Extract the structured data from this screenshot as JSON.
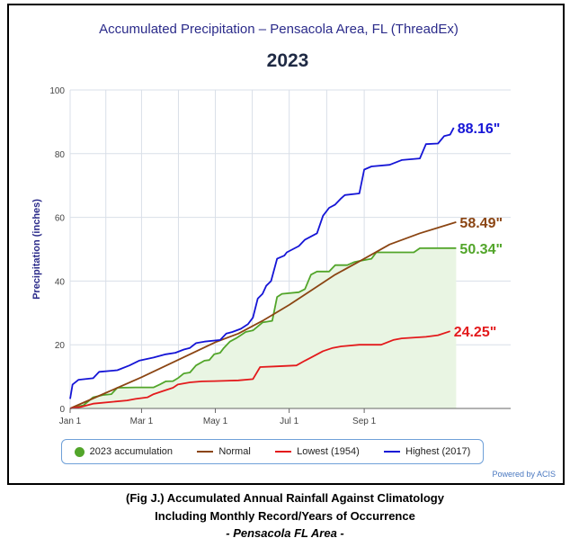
{
  "caption": {
    "line1": "(Fig J.) Accumulated Annual Rainfall Against  Climatology",
    "line2": "Including Monthly Record/Years of Occurrence",
    "line3": "- Pensacola FL Area -"
  },
  "credit": "Powered by ACIS",
  "colors": {
    "y2023": "#52a52a",
    "normal": "#8b4513",
    "lowest": "#e31a1c",
    "highest": "#1515d6",
    "fill": "#e9f5e3",
    "grid": "#d9dfe8"
  },
  "chart_data": {
    "type": "line",
    "title": "Accumulated Precipitation – Pensacola Area, FL (ThreadEx)",
    "subtitle": "2023",
    "ylabel": "Precipitation (inches)",
    "xlabel": "",
    "xlim": [
      1,
      365
    ],
    "ylim": [
      0,
      100
    ],
    "yticks": [
      0,
      20,
      40,
      60,
      80,
      100
    ],
    "xticks": [
      {
        "day": 1,
        "label": "Jan 1"
      },
      {
        "day": 60,
        "label": "Mar 1"
      },
      {
        "day": 121,
        "label": "May 1"
      },
      {
        "day": 182,
        "label": "Jul 1"
      },
      {
        "day": 244,
        "label": "Sep 1"
      }
    ],
    "grid": true,
    "legend_position": "bottom",
    "series": [
      {
        "key": "y2023",
        "name": "2023 accumulation",
        "end_label": "50.34\"",
        "points": [
          [
            1,
            0
          ],
          [
            5,
            0.4
          ],
          [
            12,
            1
          ],
          [
            20,
            3.5
          ],
          [
            28,
            4.2
          ],
          [
            35,
            4.5
          ],
          [
            40,
            6.5
          ],
          [
            55,
            6.6
          ],
          [
            70,
            6.6
          ],
          [
            75,
            7.5
          ],
          [
            80,
            8.5
          ],
          [
            86,
            8.6
          ],
          [
            90,
            9.5
          ],
          [
            95,
            11
          ],
          [
            100,
            11.3
          ],
          [
            105,
            13.5
          ],
          [
            112,
            15
          ],
          [
            116,
            15.2
          ],
          [
            120,
            17
          ],
          [
            125,
            17.5
          ],
          [
            128,
            19
          ],
          [
            133,
            21
          ],
          [
            138,
            22
          ],
          [
            142,
            23
          ],
          [
            146,
            24
          ],
          [
            152,
            24.5
          ],
          [
            160,
            27
          ],
          [
            168,
            27.5
          ],
          [
            172,
            35
          ],
          [
            176,
            36
          ],
          [
            190,
            36.5
          ],
          [
            195,
            37.5
          ],
          [
            200,
            42
          ],
          [
            205,
            43
          ],
          [
            215,
            43
          ],
          [
            220,
            45
          ],
          [
            230,
            45
          ],
          [
            236,
            46
          ],
          [
            240,
            46.3
          ],
          [
            250,
            47
          ],
          [
            254,
            49
          ],
          [
            265,
            49
          ],
          [
            285,
            49
          ],
          [
            290,
            50.3
          ],
          [
            320,
            50.34
          ]
        ]
      },
      {
        "key": "normal",
        "name": "Normal",
        "end_label": "58.49\"",
        "points": [
          [
            1,
            0
          ],
          [
            30,
            4.8
          ],
          [
            60,
            9.8
          ],
          [
            90,
            15.2
          ],
          [
            121,
            20.8
          ],
          [
            140,
            23.5
          ],
          [
            160,
            27.5
          ],
          [
            182,
            32.5
          ],
          [
            200,
            37
          ],
          [
            220,
            42
          ],
          [
            244,
            47
          ],
          [
            265,
            51.5
          ],
          [
            290,
            55
          ],
          [
            320,
            58.49
          ]
        ]
      },
      {
        "key": "lowest",
        "name": "Lowest (1954)",
        "end_label": "24.25\"",
        "points": [
          [
            1,
            0
          ],
          [
            10,
            0.5
          ],
          [
            20,
            1.5
          ],
          [
            48,
            2.5
          ],
          [
            55,
            3
          ],
          [
            65,
            3.5
          ],
          [
            70,
            4.5
          ],
          [
            78,
            5.5
          ],
          [
            86,
            6.5
          ],
          [
            90,
            7.5
          ],
          [
            100,
            8.2
          ],
          [
            110,
            8.5
          ],
          [
            120,
            8.6
          ],
          [
            140,
            8.8
          ],
          [
            152,
            9.2
          ],
          [
            158,
            13
          ],
          [
            170,
            13.2
          ],
          [
            188,
            13.5
          ],
          [
            195,
            15
          ],
          [
            200,
            16
          ],
          [
            210,
            18
          ],
          [
            218,
            19
          ],
          [
            225,
            19.5
          ],
          [
            240,
            20
          ],
          [
            258,
            20
          ],
          [
            268,
            21.5
          ],
          [
            275,
            22
          ],
          [
            295,
            22.5
          ],
          [
            305,
            23
          ],
          [
            315,
            24.25
          ]
        ]
      },
      {
        "key": "highest",
        "name": "Highest (2017)",
        "end_label": "88.16\"",
        "points": [
          [
            1,
            3
          ],
          [
            3,
            7.5
          ],
          [
            8,
            9
          ],
          [
            20,
            9.5
          ],
          [
            25,
            11.5
          ],
          [
            40,
            12
          ],
          [
            50,
            13.5
          ],
          [
            58,
            15
          ],
          [
            70,
            16
          ],
          [
            80,
            17
          ],
          [
            88,
            17.5
          ],
          [
            95,
            18.5
          ],
          [
            100,
            19
          ],
          [
            105,
            20.5
          ],
          [
            112,
            21
          ],
          [
            125,
            21.5
          ],
          [
            130,
            23.5
          ],
          [
            135,
            24
          ],
          [
            142,
            25
          ],
          [
            148,
            26.5
          ],
          [
            152,
            28.5
          ],
          [
            156,
            34.5
          ],
          [
            160,
            36
          ],
          [
            163,
            38.5
          ],
          [
            167,
            40
          ],
          [
            172,
            47
          ],
          [
            178,
            48
          ],
          [
            180,
            49
          ],
          [
            190,
            51
          ],
          [
            195,
            53
          ],
          [
            205,
            55
          ],
          [
            210,
            60.5
          ],
          [
            215,
            63
          ],
          [
            220,
            64
          ],
          [
            225,
            66
          ],
          [
            228,
            67
          ],
          [
            240,
            67.5
          ],
          [
            244,
            75
          ],
          [
            250,
            76
          ],
          [
            265,
            76.5
          ],
          [
            275,
            78
          ],
          [
            290,
            78.5
          ],
          [
            295,
            83
          ],
          [
            305,
            83.2
          ],
          [
            310,
            85.5
          ],
          [
            315,
            86
          ],
          [
            318,
            88.16
          ]
        ]
      }
    ]
  }
}
